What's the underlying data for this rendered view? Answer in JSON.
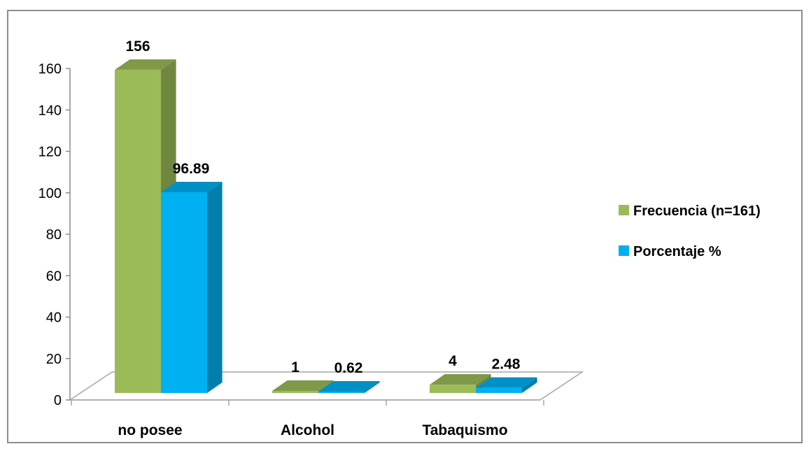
{
  "chart_data": {
    "type": "bar",
    "categories": [
      "no posee",
      "Alcohol",
      "Tabaquismo"
    ],
    "series": [
      {
        "name": "Frecuencia (n=161)",
        "values": [
          156,
          1,
          4
        ],
        "labels": [
          "156",
          "1",
          "4"
        ],
        "color": "#9BBB59"
      },
      {
        "name": "Porcentaje %",
        "values": [
          96.89,
          0.62,
          2.48
        ],
        "labels": [
          "96.89",
          "0.62",
          "2.48"
        ],
        "color": "#00B0F0"
      }
    ],
    "y_ticks": [
      "0",
      "20",
      "40",
      "60",
      "80",
      "100",
      "120",
      "140",
      "160"
    ],
    "ylim": [
      0,
      160
    ],
    "legend_position": "right",
    "grid": false
  }
}
